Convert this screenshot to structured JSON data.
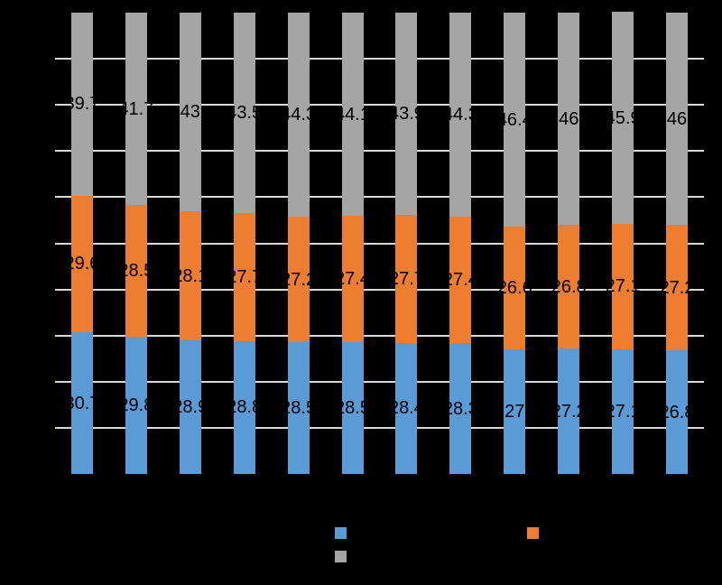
{
  "chart_data": {
    "type": "bar",
    "subtype": "stacked-100-percent-column",
    "title": "",
    "xlabel": "",
    "ylabel": "",
    "background_color": "#000000",
    "gridline_color": "#D9D9D9",
    "data_label_color": "#000000",
    "ylim": [
      0,
      100
    ],
    "grid_interval": 10,
    "n_categories": 12,
    "series": [
      {
        "name": "",
        "color": "#5B9BD5",
        "values": [
          30.7,
          29.8,
          28.9,
          28.8,
          28.5,
          28.5,
          28.4,
          28.3,
          27,
          27.2,
          27.1,
          26.8
        ]
      },
      {
        "name": "",
        "color": "#ED7D31",
        "values": [
          29.6,
          28.5,
          28.1,
          27.7,
          27.2,
          27.4,
          27.7,
          27.4,
          26.6,
          26.8,
          27.1,
          27.2
        ]
      },
      {
        "name": "",
        "color": "#A5A5A5",
        "values": [
          39.7,
          41.7,
          43,
          43.5,
          44.3,
          44.1,
          43.9,
          44.3,
          46.4,
          46,
          45.9,
          46
        ]
      }
    ],
    "legend": {
      "position": "bottom",
      "labels_visible": false,
      "swatch_colors": [
        "#5B9BD5",
        "#ED7D31",
        "#A5A5A5"
      ]
    }
  }
}
